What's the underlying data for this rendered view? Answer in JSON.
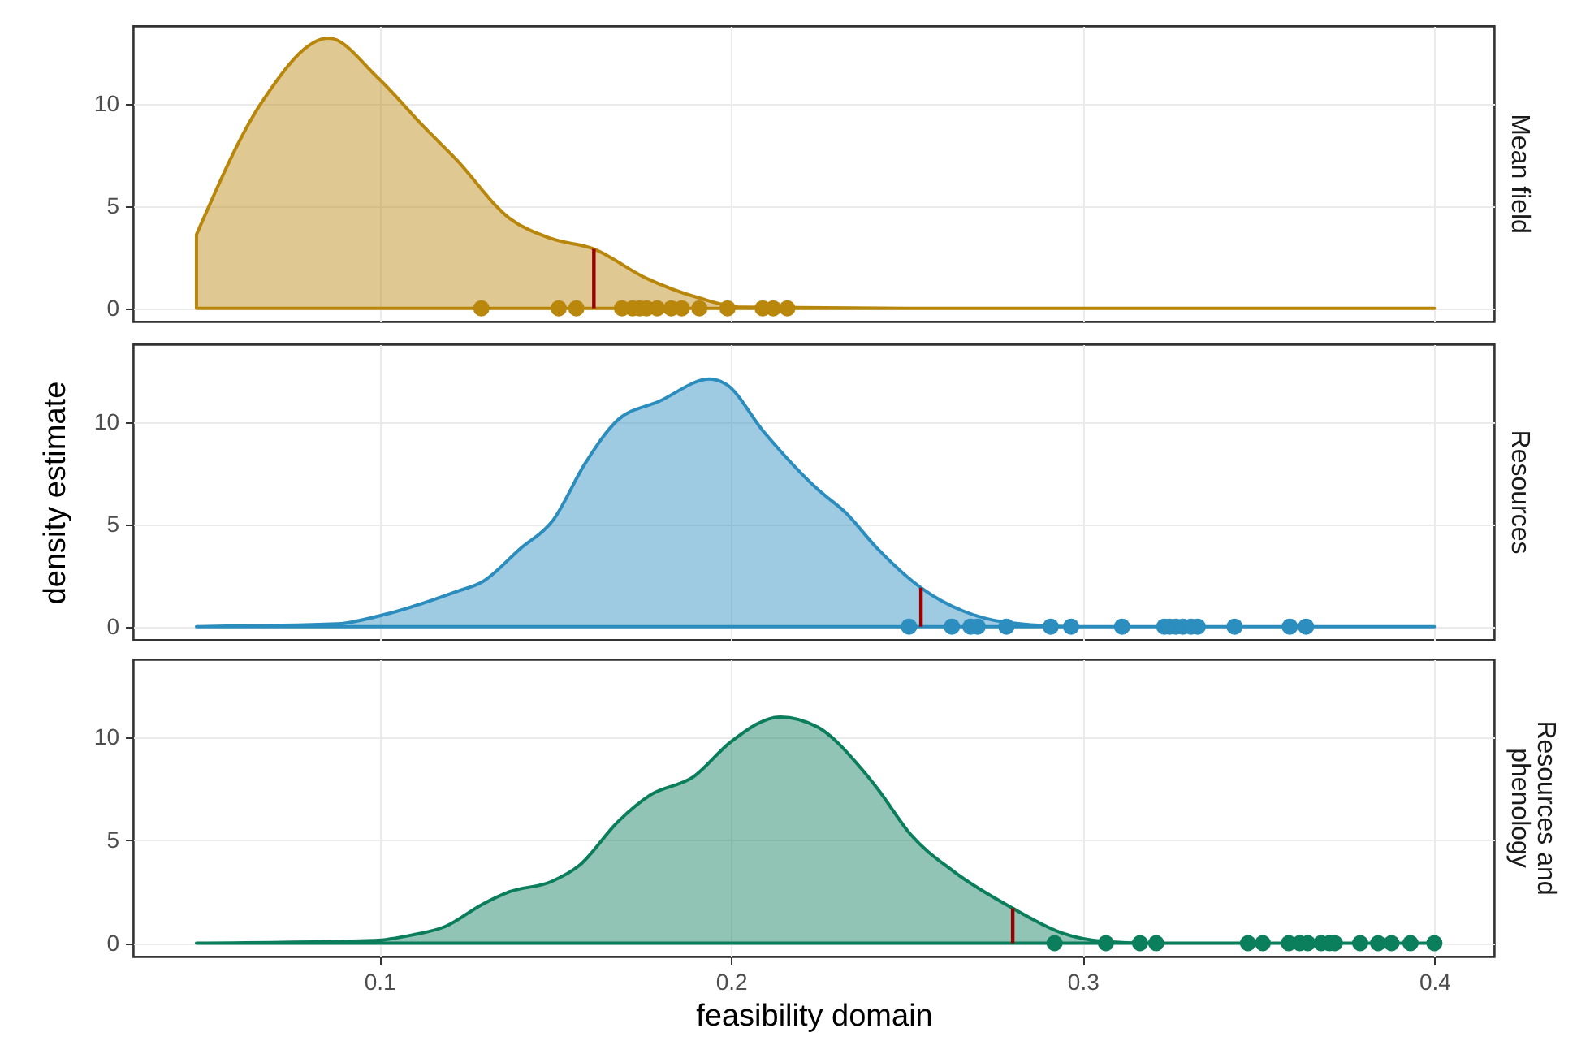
{
  "chart_data": [
    {
      "type": "area",
      "title": "Mean field",
      "xlim": [
        0.03,
        0.417
      ],
      "ylim": [
        -0.65,
        13.8
      ],
      "xticks": [
        0.1,
        0.2,
        0.3,
        0.4
      ],
      "yticks": [
        0,
        5,
        10
      ],
      "grid": true,
      "tick_labels": "y",
      "series": [
        {
          "type": "area",
          "color": "#b8860b",
          "x": [
            0.048,
            0.0663,
            0.0856,
            0.0994,
            0.1125,
            0.1217,
            0.137,
            0.149,
            0.161,
            0.1755,
            0.191,
            0.203,
            0.25,
            0.3,
            0.35,
            0.4
          ],
          "values": [
            3.6,
            10.0,
            13.2,
            11.3,
            8.9,
            7.3,
            4.4,
            3.4,
            2.9,
            1.5,
            0.5,
            0.05,
            0,
            0,
            0,
            0
          ]
        },
        {
          "type": "scatter",
          "marker": "circle",
          "color": "#b9870c",
          "x": [
            0.129,
            0.151,
            0.156,
            0.169,
            0.172,
            0.174,
            0.176,
            0.179,
            0.183,
            0.186,
            0.191,
            0.199,
            0.209,
            0.212,
            0.216
          ],
          "values": [
            0,
            0,
            0,
            0,
            0,
            0,
            0,
            0,
            0,
            0,
            0,
            0,
            0,
            0,
            0
          ]
        },
        {
          "type": "line",
          "color": "#990000",
          "x": [
            0.161,
            0.161
          ],
          "values": [
            0,
            2.9
          ]
        }
      ]
    },
    {
      "type": "area",
      "title": "Resources",
      "ylabel": "density estimate",
      "xlim": [
        0.03,
        0.417
      ],
      "ylim": [
        -0.65,
        13.8
      ],
      "xticks": [
        0.1,
        0.2,
        0.3,
        0.4
      ],
      "yticks": [
        0,
        5,
        10
      ],
      "grid": true,
      "tick_labels": "y",
      "series": [
        {
          "type": "area",
          "color": "#2b8cbe",
          "x": [
            0.048,
            0.0879,
            0.1017,
            0.1217,
            0.1294,
            0.14,
            0.1494,
            0.1586,
            0.1678,
            0.1794,
            0.194,
            0.1986,
            0.2094,
            0.2247,
            0.2324,
            0.2417,
            0.254,
            0.2663,
            0.2786,
            0.297,
            0.35,
            0.4
          ],
          "values": [
            0,
            0.13,
            0.6,
            1.7,
            2.2,
            3.8,
            5.2,
            8.0,
            10.1,
            11.0,
            12.1,
            11.85,
            9.5,
            6.7,
            5.6,
            3.8,
            1.9,
            0.74,
            0.2,
            0,
            0,
            0
          ]
        },
        {
          "type": "scatter",
          "marker": "circle",
          "color": "#2c8dbf",
          "x": [
            0.2506,
            0.2628,
            0.2681,
            0.2701,
            0.2783,
            0.2909,
            0.2967,
            0.3112,
            0.3232,
            0.3247,
            0.3265,
            0.3285,
            0.3308,
            0.3327,
            0.3432,
            0.3589,
            0.3635
          ],
          "values": [
            0,
            0,
            0,
            0,
            0,
            0,
            0,
            0,
            0,
            0,
            0,
            0,
            0,
            0,
            0,
            0,
            0
          ]
        },
        {
          "type": "line",
          "color": "#990000",
          "x": [
            0.254,
            0.254
          ],
          "values": [
            0,
            1.9
          ]
        }
      ]
    },
    {
      "type": "area",
      "title": "Resources and phenology",
      "xlabel": "feasibility domain",
      "xlim": [
        0.03,
        0.417
      ],
      "ylim": [
        -0.65,
        13.8
      ],
      "xticks": [
        0.1,
        0.2,
        0.3,
        0.4
      ],
      "yticks": [
        0,
        5,
        10
      ],
      "grid": true,
      "series": [
        {
          "type": "area",
          "color": "#0a7d5a",
          "x": [
            0.048,
            0.0986,
            0.1094,
            0.1186,
            0.1294,
            0.137,
            0.149,
            0.157,
            0.1678,
            0.177,
            0.1894,
            0.2,
            0.214,
            0.2247,
            0.237,
            0.2417,
            0.251,
            0.2632,
            0.2801,
            0.294,
            0.3063,
            0.3186,
            0.35,
            0.4
          ],
          "values": [
            0,
            0.13,
            0.4,
            0.8,
            1.9,
            2.5,
            3.0,
            3.8,
            5.9,
            7.2,
            8.1,
            9.8,
            11.0,
            10.5,
            8.5,
            7.5,
            5.3,
            3.5,
            1.7,
            0.5,
            0.08,
            0,
            0,
            0
          ]
        },
        {
          "type": "scatter",
          "marker": "circle",
          "color": "#0b7e5b",
          "x": [
            0.292,
            0.3066,
            0.3163,
            0.3209,
            0.347,
            0.3512,
            0.3586,
            0.3617,
            0.364,
            0.3678,
            0.3701,
            0.3717,
            0.3789,
            0.384,
            0.3878,
            0.3932,
            0.4
          ],
          "values": [
            0,
            0,
            0,
            0,
            0,
            0,
            0,
            0,
            0,
            0,
            0,
            0,
            0,
            0,
            0,
            0,
            0
          ]
        },
        {
          "type": "line",
          "color": "#990000",
          "x": [
            0.2801,
            0.2801
          ],
          "values": [
            0,
            1.7
          ]
        }
      ]
    }
  ]
}
